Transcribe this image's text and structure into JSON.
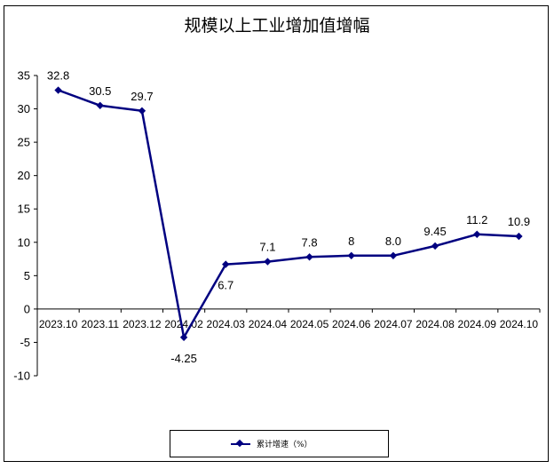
{
  "chart_data": {
    "type": "line",
    "title": "规模以上工业增加值增幅",
    "categories": [
      "2023.10",
      "2023.11",
      "2023.12",
      "2024.02",
      "2024.03",
      "2024.04",
      "2024.05",
      "2024.06",
      "2024.07",
      "2024.08",
      "2024.09",
      "2024.10"
    ],
    "series": [
      {
        "name": "累计增速（%）",
        "values": [
          32.8,
          30.5,
          29.7,
          -4.25,
          6.7,
          7.1,
          7.8,
          8,
          8.0,
          9.45,
          11.2,
          10.9
        ],
        "labels": [
          "32.8",
          "30.5",
          "29.7",
          "-4.25",
          "6.7",
          "7.1",
          "7.8",
          "8",
          "8.0",
          "9.45",
          "11.2",
          "10.9"
        ],
        "color": "#000080"
      }
    ],
    "yticks": [
      "35",
      "30",
      "25",
      "20",
      "15",
      "10",
      "5",
      "0",
      "-5",
      "-10"
    ],
    "ylim": [
      -10,
      35
    ],
    "grid": false,
    "legend_position": "bottom"
  }
}
